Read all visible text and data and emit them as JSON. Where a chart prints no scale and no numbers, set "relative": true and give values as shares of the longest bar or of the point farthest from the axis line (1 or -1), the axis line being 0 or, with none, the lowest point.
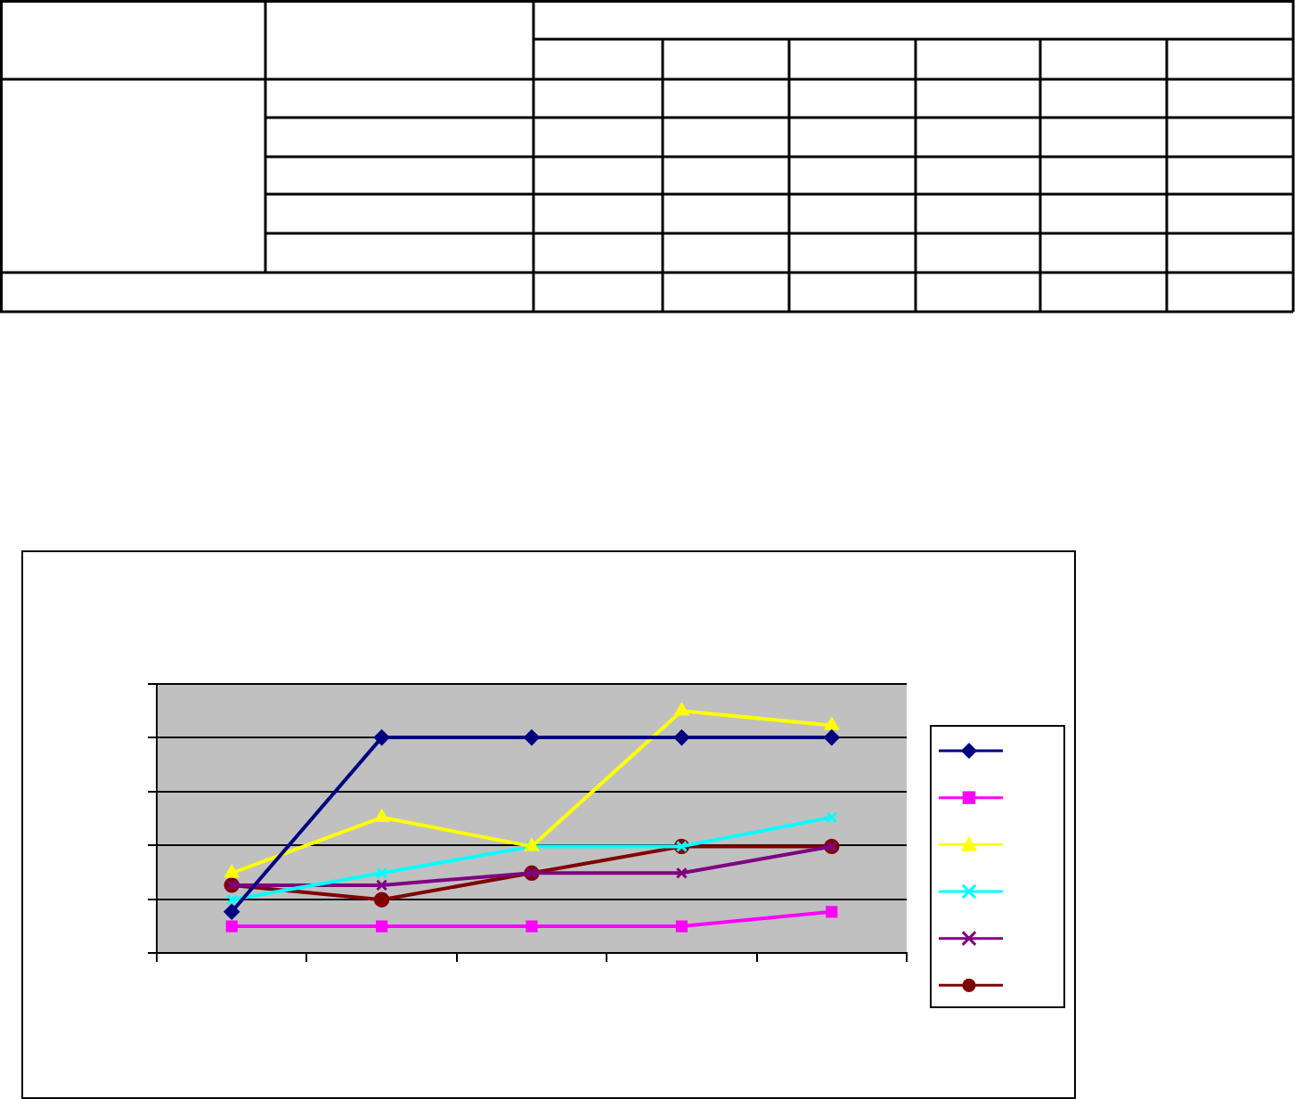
{
  "chart_data": {
    "type": "line",
    "categories": [
      null,
      null,
      null,
      null,
      null
    ],
    "relative": true,
    "grid": "y",
    "series": [
      {
        "color": "#000080",
        "marker": "diamond",
        "values": [
          0.17,
          0.89,
          0.89,
          0.89,
          0.89
        ]
      },
      {
        "color": "#ff00ff",
        "marker": "square",
        "values": [
          0.11,
          0.11,
          0.11,
          0.11,
          0.17
        ]
      },
      {
        "color": "#ffff00",
        "marker": "triangle",
        "values": [
          0.33,
          0.56,
          0.44,
          1,
          0.94
        ]
      },
      {
        "color": "#00ffff",
        "marker": "cross",
        "values": [
          0.22,
          0.33,
          0.44,
          0.44,
          0.56
        ]
      },
      {
        "color": "#800080",
        "marker": "cross",
        "values": [
          0.28,
          0.28,
          0.33,
          0.33,
          0.44
        ]
      },
      {
        "color": "#800000",
        "marker": "circle",
        "values": [
          0.28,
          0.22,
          0.33,
          0.44,
          0.44
        ]
      }
    ]
  }
}
